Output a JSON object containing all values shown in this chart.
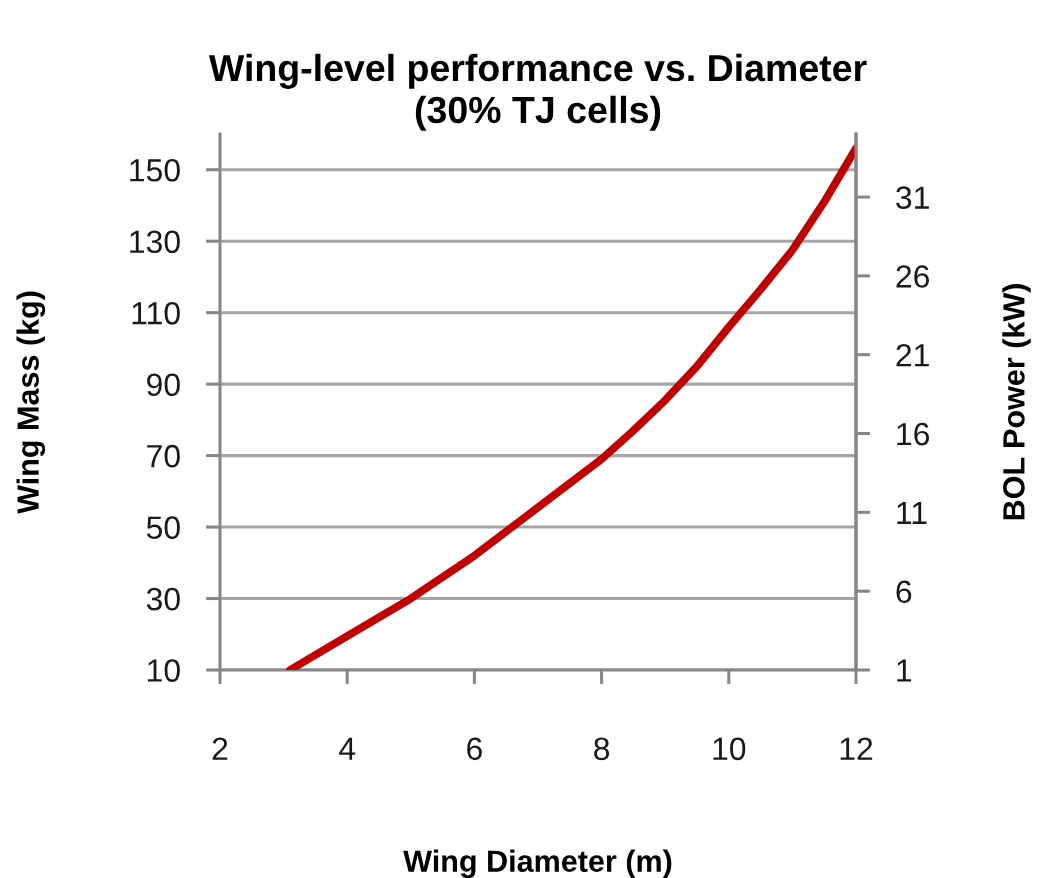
{
  "chart_data": {
    "type": "line",
    "title": "Wing-level performance vs. Diameter\n(30% TJ cells)",
    "xlabel": "Wing Diameter (m)",
    "ylabel": "Wing Mass (kg)",
    "y2label": "BOL Power (kW)",
    "x": [
      3.1,
      4,
      5,
      6,
      7,
      8,
      8.5,
      9,
      9.5,
      10,
      10.5,
      11,
      11.5,
      12
    ],
    "series": [
      {
        "color": "#c00000",
        "values": [
          10,
          19.5,
          30,
          42,
          55.5,
          69,
          77,
          85.5,
          95,
          106,
          116.5,
          127.5,
          141,
          156
        ]
      }
    ],
    "xlim": [
      2,
      12
    ],
    "xticks": [
      2,
      4,
      6,
      8,
      10,
      12
    ],
    "ylim": [
      10,
      160
    ],
    "yticks": [
      10,
      30,
      50,
      70,
      90,
      110,
      130,
      150
    ],
    "y2lim": [
      1,
      35
    ],
    "y2ticks": [
      1,
      6,
      11,
      16,
      21,
      26,
      31
    ],
    "grid": "y"
  }
}
